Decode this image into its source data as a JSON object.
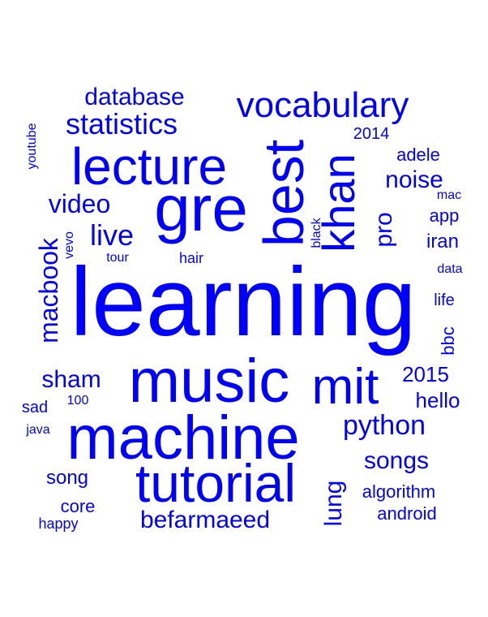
{
  "color": "#0000ff",
  "words": [
    {
      "id": "learning",
      "text": "learning"
    },
    {
      "id": "machine",
      "text": "machine"
    },
    {
      "id": "music",
      "text": "music"
    },
    {
      "id": "tutorial",
      "text": "tutorial"
    },
    {
      "id": "lecture",
      "text": "lecture"
    },
    {
      "id": "best",
      "text": "best"
    },
    {
      "id": "gre",
      "text": "gre"
    },
    {
      "id": "mit",
      "text": "mit"
    },
    {
      "id": "khan",
      "text": "khan"
    },
    {
      "id": "vocabulary",
      "text": "vocabulary"
    },
    {
      "id": "statistics",
      "text": "statistics"
    },
    {
      "id": "database",
      "text": "database"
    },
    {
      "id": "video",
      "text": "video"
    },
    {
      "id": "live",
      "text": "live"
    },
    {
      "id": "macbook",
      "text": "macbook"
    },
    {
      "id": "python",
      "text": "python"
    },
    {
      "id": "befarmaeed",
      "text": "befarmaeed"
    },
    {
      "id": "sham",
      "text": "sham"
    },
    {
      "id": "songs",
      "text": "songs"
    },
    {
      "id": "2015",
      "text": "2015"
    },
    {
      "id": "hello",
      "text": "hello"
    },
    {
      "id": "noise",
      "text": "noise"
    },
    {
      "id": "pro",
      "text": "pro"
    },
    {
      "id": "adele",
      "text": "adele"
    },
    {
      "id": "lung",
      "text": "lung"
    },
    {
      "id": "song",
      "text": "song"
    },
    {
      "id": "core",
      "text": "core"
    },
    {
      "id": "algorithm",
      "text": "algorithm"
    },
    {
      "id": "android",
      "text": "android"
    },
    {
      "id": "2014",
      "text": "2014"
    },
    {
      "id": "iran",
      "text": "iran"
    },
    {
      "id": "app",
      "text": "app"
    },
    {
      "id": "bbc",
      "text": "bbc"
    },
    {
      "id": "life",
      "text": "life"
    },
    {
      "id": "youtube",
      "text": "youtube"
    },
    {
      "id": "sad",
      "text": "sad"
    },
    {
      "id": "happy",
      "text": "happy"
    },
    {
      "id": "java",
      "text": "java"
    },
    {
      "id": "hair",
      "text": "hair"
    },
    {
      "id": "tour",
      "text": "tour"
    },
    {
      "id": "vevo",
      "text": "vevo"
    },
    {
      "id": "black",
      "text": "black"
    },
    {
      "id": "mac",
      "text": "mac"
    },
    {
      "id": "data",
      "text": "data"
    },
    {
      "id": "100",
      "text": "100"
    }
  ]
}
